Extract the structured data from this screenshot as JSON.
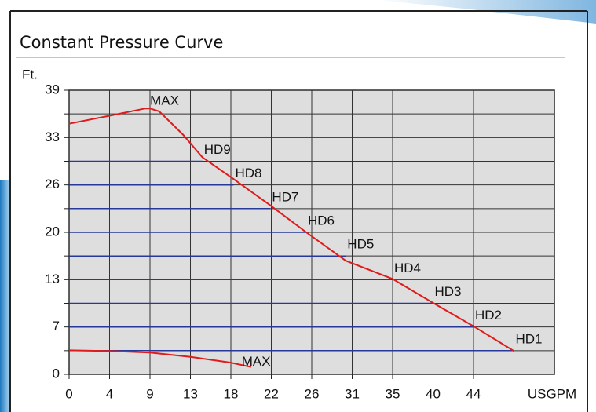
{
  "chart_data": {
    "type": "line",
    "title": "Constant Pressure Curve",
    "y_label": "Ft.",
    "x_label": "USGPM",
    "xlim": [
      0,
      52.8
    ],
    "ylim": [
      0,
      39
    ],
    "xticks": [
      0,
      {
        "value": 4.4,
        "label": "4"
      },
      {
        "value": 8.8,
        "label": "9"
      },
      {
        "value": 13.2,
        "label": "13"
      },
      {
        "value": 17.6,
        "label": "18"
      },
      22,
      {
        "value": 26.4,
        "label": "26"
      },
      {
        "value": 30.8,
        "label": "31"
      },
      {
        "value": 35.2,
        "label": "35"
      },
      {
        "value": 39.6,
        "label": "40"
      },
      44
    ],
    "xminorticks": [
      48.4
    ],
    "yticks": [
      0,
      {
        "value": 6.5,
        "label": "7"
      },
      13,
      {
        "value": 19.5,
        "label": "20"
      },
      26,
      {
        "value": 32.5,
        "label": "33"
      },
      39
    ],
    "yminorticks": [
      3.25,
      9.75,
      16.25,
      22.75,
      29.25,
      35.75
    ],
    "grid": true,
    "series": [
      {
        "name": "HD1",
        "color": "#26389a",
        "x": [
          0,
          48.4
        ],
        "values": [
          3.25,
          3.25
        ]
      },
      {
        "name": "HD2",
        "color": "#26389a",
        "x": [
          0,
          44
        ],
        "values": [
          6.5,
          6.5
        ]
      },
      {
        "name": "HD3",
        "color": "#26389a",
        "x": [
          0,
          39.6
        ],
        "values": [
          9.75,
          9.75
        ]
      },
      {
        "name": "HD4",
        "color": "#26389a",
        "x": [
          0,
          35.2
        ],
        "values": [
          13,
          13
        ]
      },
      {
        "name": "HD5",
        "color": "#26389a",
        "x": [
          0,
          30.1
        ],
        "values": [
          16.25,
          16.25
        ]
      },
      {
        "name": "HD6",
        "color": "#26389a",
        "x": [
          0,
          25.8
        ],
        "values": [
          19.5,
          19.5
        ]
      },
      {
        "name": "HD7",
        "color": "#26389a",
        "x": [
          0,
          21.9
        ],
        "values": [
          22.75,
          22.75
        ]
      },
      {
        "name": "HD8",
        "color": "#26389a",
        "x": [
          0,
          17.9
        ],
        "values": [
          26,
          26
        ]
      },
      {
        "name": "HD9",
        "color": "#26389a",
        "x": [
          0,
          14.5
        ],
        "values": [
          29.25,
          29.25
        ]
      },
      {
        "name": "MAX",
        "color": "#e01b1b",
        "label_at": "peak",
        "x": [
          0,
          4.4,
          8.3,
          8.8,
          9.8,
          12.4,
          14.5,
          17.9,
          21.9,
          25.8,
          30.1,
          35.2,
          39.6,
          44,
          48.4
        ],
        "values": [
          34.4,
          35.5,
          36.5,
          36.5,
          36.1,
          32.9,
          29.8,
          26.8,
          23.2,
          19.5,
          15.6,
          13.1,
          9.8,
          6.6,
          3.2
        ]
      },
      {
        "name": "MAX",
        "color": "#e01b1b",
        "label_at": "end",
        "x": [
          0,
          4.4,
          8.8,
          13.2,
          17.6,
          19.8
        ],
        "values": [
          3.3,
          3.2,
          3.0,
          2.4,
          1.6,
          1.0
        ]
      }
    ]
  }
}
